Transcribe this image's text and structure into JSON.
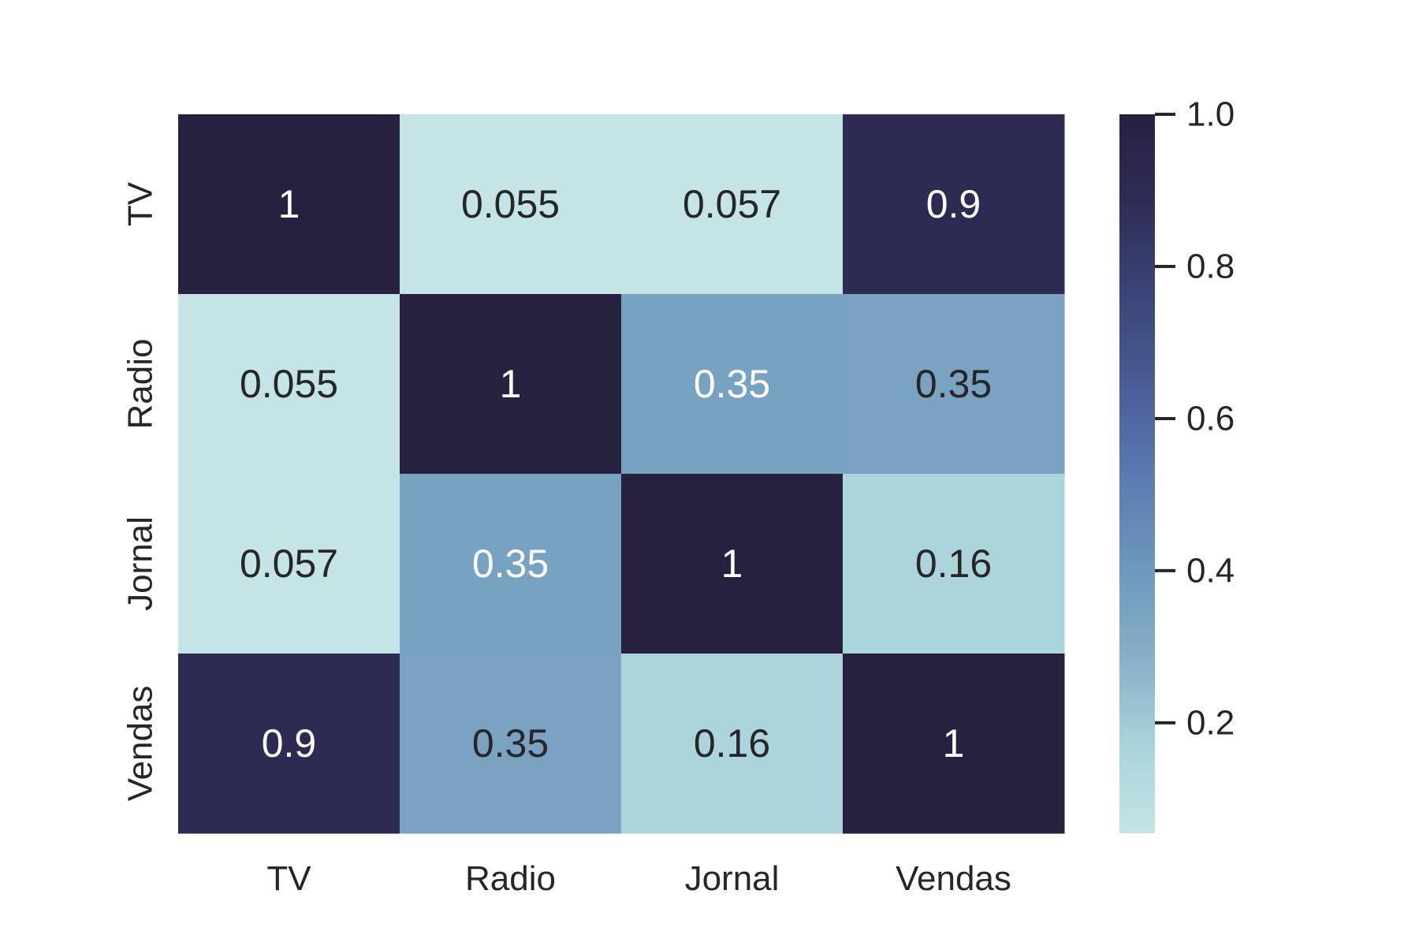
{
  "chart_data": {
    "type": "heatmap",
    "title": "",
    "xlabel": "",
    "ylabel": "",
    "x_categories": [
      "TV",
      "Radio",
      "Jornal",
      "Vendas"
    ],
    "y_categories": [
      "TV",
      "Radio",
      "Jornal",
      "Vendas"
    ],
    "values": [
      [
        1,
        0.054809,
        0.056648,
        0.901208
      ],
      [
        0.054809,
        1,
        0.354104,
        0.349631
      ],
      [
        0.056648,
        0.354104,
        1,
        0.15796
      ],
      [
        0.901208,
        0.349631,
        0.15796,
        1
      ]
    ],
    "annotations": [
      [
        "1",
        "0.055",
        "0.057",
        "0.9"
      ],
      [
        "0.055",
        "1",
        "0.35",
        "0.35"
      ],
      [
        "0.057",
        "0.35",
        "1",
        "0.16"
      ],
      [
        "0.9",
        "0.35",
        "0.16",
        "1"
      ]
    ],
    "colorbar": {
      "min": 0.054809,
      "max": 1.0,
      "ticks": [
        0.2,
        0.4,
        0.6,
        0.8,
        1.0
      ],
      "tick_labels": [
        "0.2",
        "0.4",
        "0.6",
        "0.8",
        "1.0"
      ],
      "colormap": [
        "#c4e4e5",
        "#a8d3d9",
        "#85afc6",
        "#6c96bc",
        "#5a7aaf",
        "#4a5c94",
        "#3b4578",
        "#2f2d57",
        "#27203f"
      ]
    },
    "annotation_color_dark_text": "#262626",
    "annotation_color_light_text": "#ffffff"
  }
}
